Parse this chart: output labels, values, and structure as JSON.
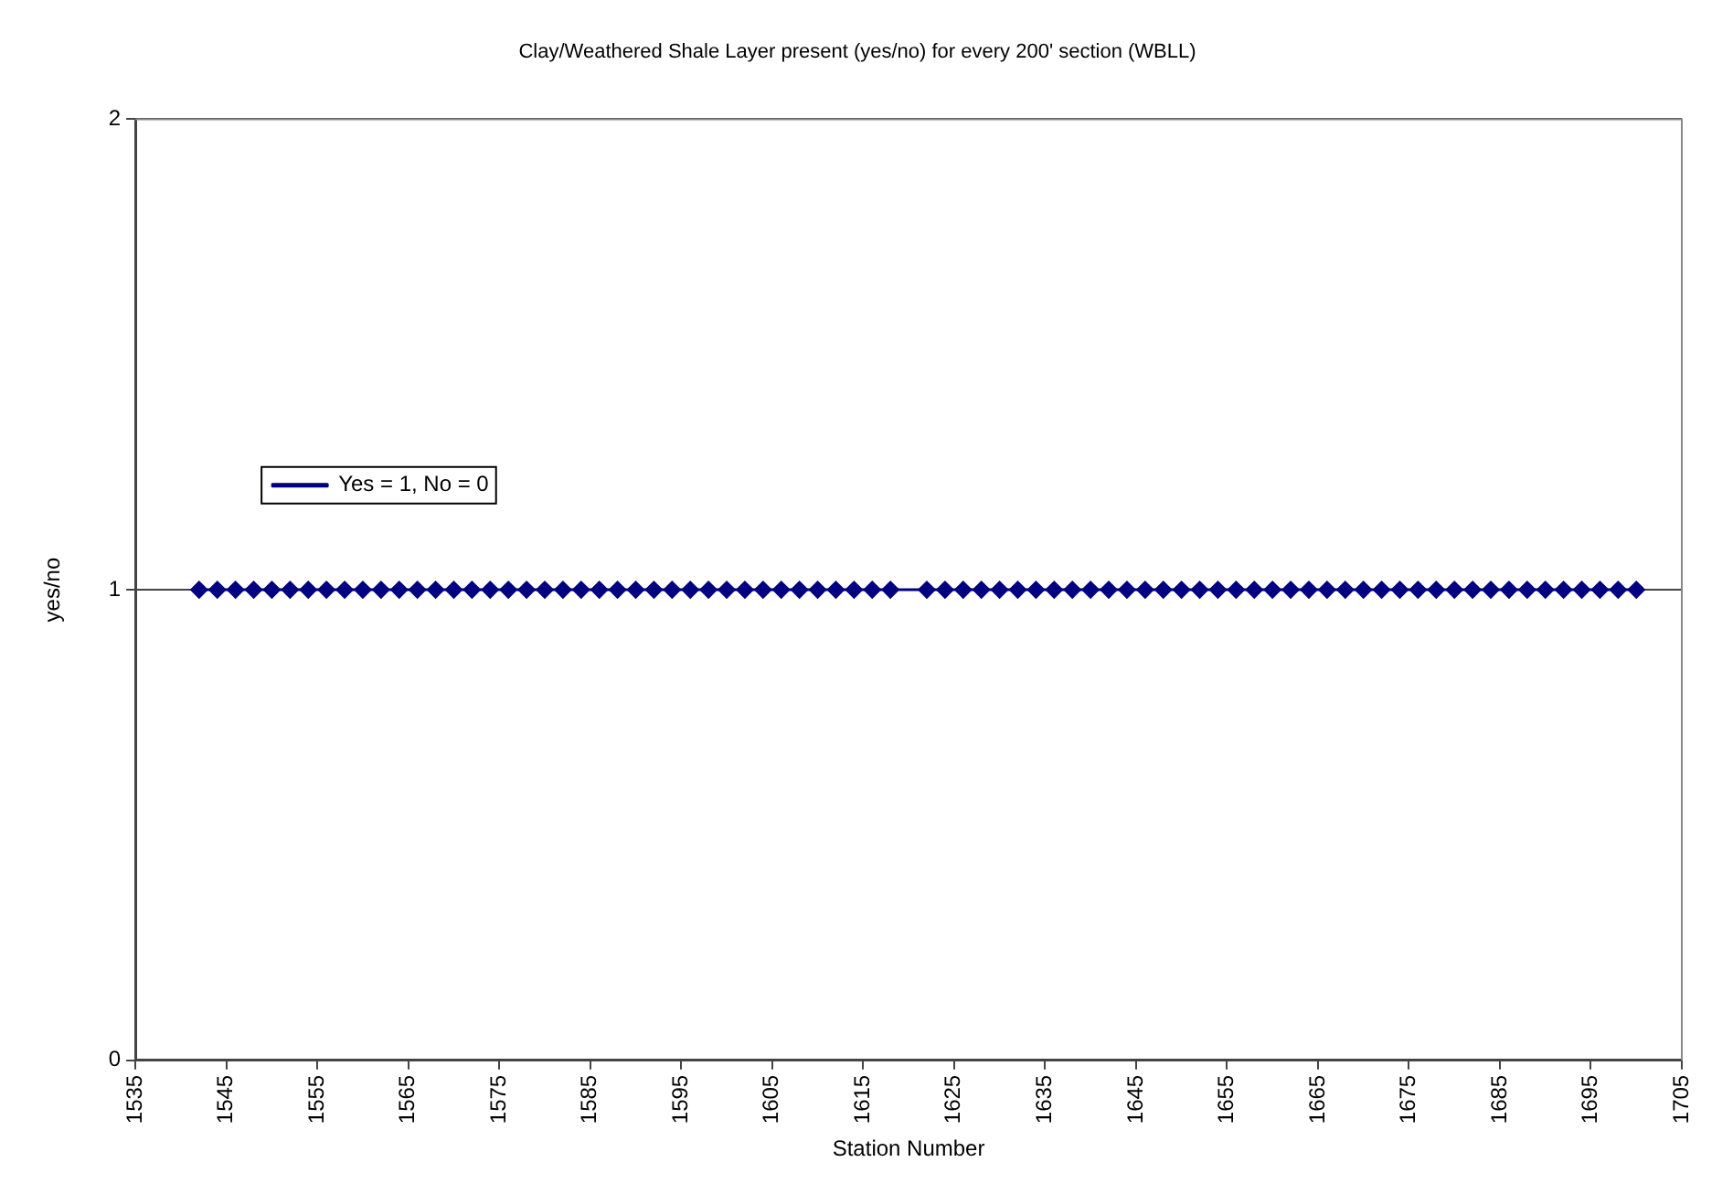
{
  "chart_data": {
    "type": "line",
    "title": "Clay/Weathered Shale Layer present (yes/no) for every 200' section (WBLL)",
    "xlabel": "Station Number",
    "ylabel": "yes/no",
    "x": [
      1542,
      1544,
      1546,
      1548,
      1550,
      1552,
      1554,
      1556,
      1558,
      1560,
      1562,
      1564,
      1566,
      1568,
      1570,
      1572,
      1574,
      1576,
      1578,
      1580,
      1582,
      1584,
      1586,
      1588,
      1590,
      1592,
      1594,
      1596,
      1598,
      1600,
      1602,
      1604,
      1606,
      1608,
      1610,
      1612,
      1614,
      1616,
      1618,
      1622,
      1624,
      1626,
      1628,
      1630,
      1632,
      1634,
      1636,
      1638,
      1640,
      1642,
      1644,
      1646,
      1648,
      1650,
      1652,
      1654,
      1656,
      1658,
      1660,
      1662,
      1664,
      1666,
      1668,
      1670,
      1672,
      1674,
      1676,
      1678,
      1680,
      1682,
      1684,
      1686,
      1688,
      1690,
      1692,
      1694,
      1696,
      1698,
      1700
    ],
    "series": [
      {
        "name": "Yes = 1, No = 0",
        "color": "#000080",
        "values": [
          1,
          1,
          1,
          1,
          1,
          1,
          1,
          1,
          1,
          1,
          1,
          1,
          1,
          1,
          1,
          1,
          1,
          1,
          1,
          1,
          1,
          1,
          1,
          1,
          1,
          1,
          1,
          1,
          1,
          1,
          1,
          1,
          1,
          1,
          1,
          1,
          1,
          1,
          1,
          1,
          1,
          1,
          1,
          1,
          1,
          1,
          1,
          1,
          1,
          1,
          1,
          1,
          1,
          1,
          1,
          1,
          1,
          1,
          1,
          1,
          1,
          1,
          1,
          1,
          1,
          1,
          1,
          1,
          1,
          1,
          1,
          1,
          1,
          1,
          1,
          1,
          1,
          1,
          1
        ]
      }
    ],
    "xlim": [
      1535,
      1705
    ],
    "xticks": [
      1535,
      1545,
      1555,
      1565,
      1575,
      1585,
      1595,
      1605,
      1615,
      1625,
      1635,
      1645,
      1655,
      1665,
      1675,
      1685,
      1695,
      1705
    ],
    "ylim": [
      0,
      2
    ],
    "yticks": [
      0,
      1,
      2
    ],
    "grid": "y",
    "legend": "top",
    "marker": "diamond",
    "line_style": "solid"
  }
}
